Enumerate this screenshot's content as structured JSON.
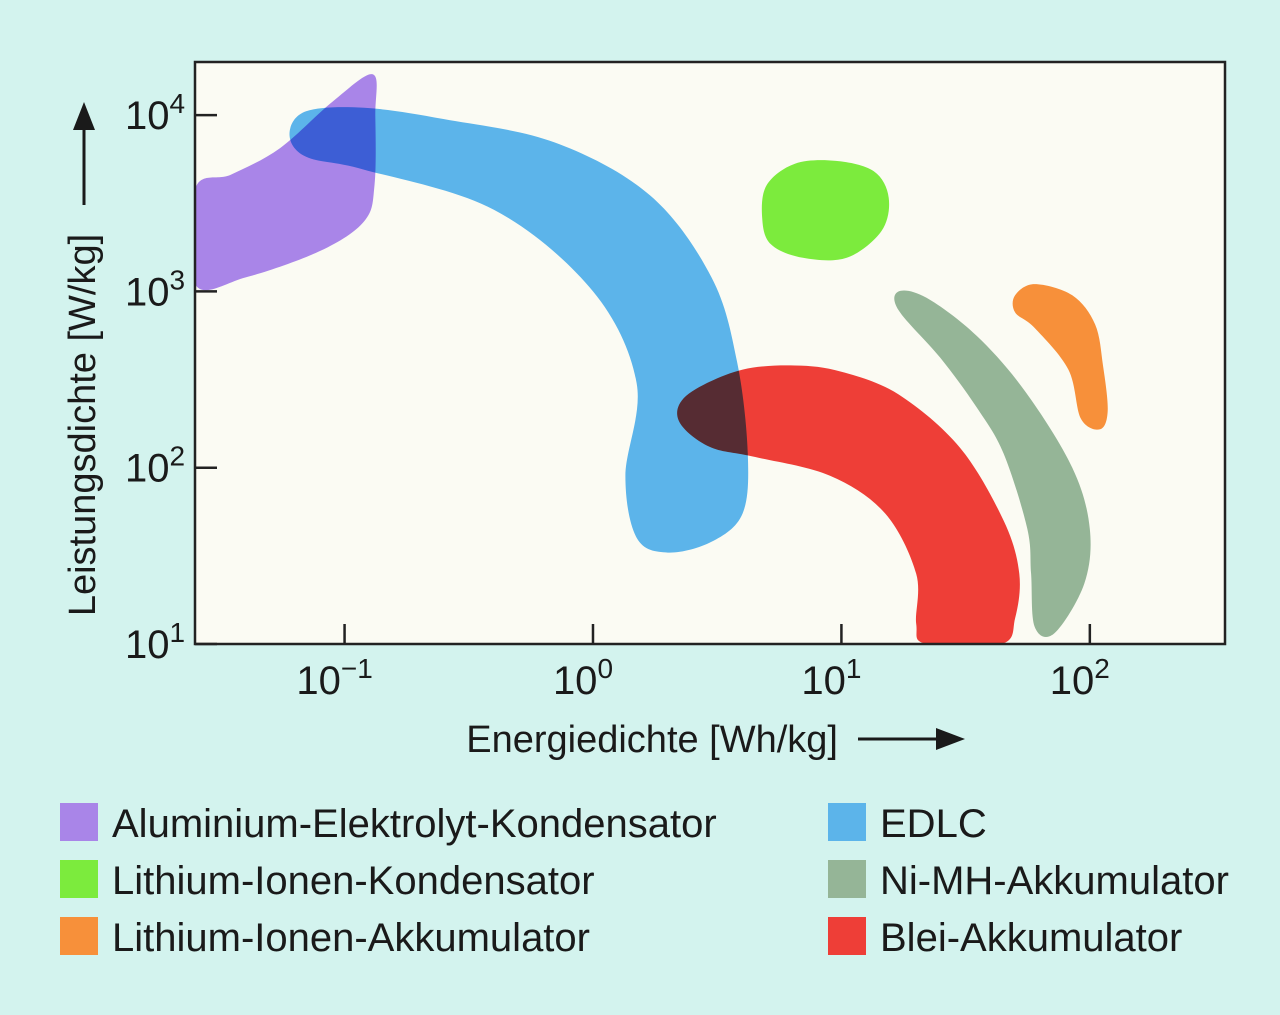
{
  "chart_data": {
    "type": "area",
    "xlabel": "Energiedichte [Wh/kg]",
    "ylabel": "Leistungsdichte [W/kg]",
    "x_scale": "log",
    "y_scale": "log",
    "xlim": [
      0.025,
      350
    ],
    "ylim": [
      10,
      20000
    ],
    "x_ticks": [
      {
        "value": 0.1,
        "base": "10",
        "exp": "−1"
      },
      {
        "value": 1,
        "base": "10",
        "exp": "0"
      },
      {
        "value": 10,
        "base": "10",
        "exp": "1"
      },
      {
        "value": 100,
        "base": "10",
        "exp": "2"
      }
    ],
    "y_ticks": [
      {
        "value": 10,
        "base": "10",
        "exp": "1"
      },
      {
        "value": 100,
        "base": "10",
        "exp": "2"
      },
      {
        "value": 1000,
        "base": "10",
        "exp": "3"
      },
      {
        "value": 10000,
        "base": "10",
        "exp": "4"
      }
    ],
    "grid": false,
    "legend_position": "bottom",
    "series": [
      {
        "name": "Aluminium-Elektrolyt-Kondensator",
        "color": "#a985e8",
        "region": [
          [
            0.025,
            1100
          ],
          [
            0.04,
            1200
          ],
          [
            0.08,
            1700
          ],
          [
            0.12,
            2500
          ],
          [
            0.132,
            4000
          ],
          [
            0.133,
            10000
          ],
          [
            0.13,
            17000
          ],
          [
            0.09,
            12000
          ],
          [
            0.055,
            6500
          ],
          [
            0.035,
            4600
          ],
          [
            0.025,
            3800
          ]
        ]
      },
      {
        "name": "EDLC",
        "color": "#5cb4ea",
        "region": [
          [
            0.07,
            10500
          ],
          [
            0.12,
            11000
          ],
          [
            0.25,
            9500
          ],
          [
            0.7,
            7000
          ],
          [
            1.7,
            3500
          ],
          [
            3.0,
            1200
          ],
          [
            3.8,
            400
          ],
          [
            4.2,
            120
          ],
          [
            4.0,
            55
          ],
          [
            3.0,
            38
          ],
          [
            2.0,
            33
          ],
          [
            1.5,
            40
          ],
          [
            1.35,
            90
          ],
          [
            1.5,
            300
          ],
          [
            1.0,
            1000
          ],
          [
            0.4,
            2900
          ],
          [
            0.12,
            4900
          ],
          [
            0.07,
            5800
          ],
          [
            0.06,
            7800
          ]
        ]
      },
      {
        "name": "Lithium-Ionen-Kondensator",
        "color": "#7ceb3d",
        "region": [
          [
            5.0,
            4000
          ],
          [
            6.5,
            5300
          ],
          [
            9.5,
            5500
          ],
          [
            13.5,
            4800
          ],
          [
            15.5,
            3400
          ],
          [
            14.5,
            2200
          ],
          [
            10.5,
            1550
          ],
          [
            7.0,
            1550
          ],
          [
            5.2,
            1850
          ],
          [
            4.8,
            2600
          ]
        ]
      },
      {
        "name": "Lithium-Ionen-Akkumulator",
        "color": "#f7903a",
        "region": [
          [
            50,
            950
          ],
          [
            60,
            1100
          ],
          [
            85,
            950
          ],
          [
            105,
            650
          ],
          [
            113,
            380
          ],
          [
            118,
            210
          ],
          [
            110,
            165
          ],
          [
            92,
            190
          ],
          [
            82,
            360
          ],
          [
            60,
            620
          ],
          [
            50,
            760
          ]
        ]
      },
      {
        "name": "Ni-MH-Akkumulator",
        "color": "#95b597",
        "region": [
          [
            17,
            1000
          ],
          [
            22,
            920
          ],
          [
            35,
            560
          ],
          [
            55,
            270
          ],
          [
            85,
            100
          ],
          [
            100,
            45
          ],
          [
            95,
            22
          ],
          [
            72,
            11.5
          ],
          [
            60,
            12.5
          ],
          [
            58,
            25
          ],
          [
            56,
            45
          ],
          [
            45,
            120
          ],
          [
            35,
            220
          ],
          [
            25,
            420
          ],
          [
            17,
            780
          ]
        ]
      },
      {
        "name": "Blei-Akkumulator",
        "color": "#ee3e37",
        "region": [
          [
            2.6,
            280
          ],
          [
            4,
            360
          ],
          [
            6.5,
            380
          ],
          [
            10,
            350
          ],
          [
            17,
            260
          ],
          [
            30,
            130
          ],
          [
            45,
            50
          ],
          [
            52,
            25
          ],
          [
            50,
            14
          ],
          [
            44,
            10
          ],
          [
            22,
            10
          ],
          [
            20,
            13
          ],
          [
            20,
            25
          ],
          [
            15,
            55
          ],
          [
            9,
            90
          ],
          [
            4.5,
            115
          ],
          [
            3,
            130
          ],
          [
            2.3,
            170
          ],
          [
            2.2,
            220
          ]
        ]
      }
    ]
  }
}
